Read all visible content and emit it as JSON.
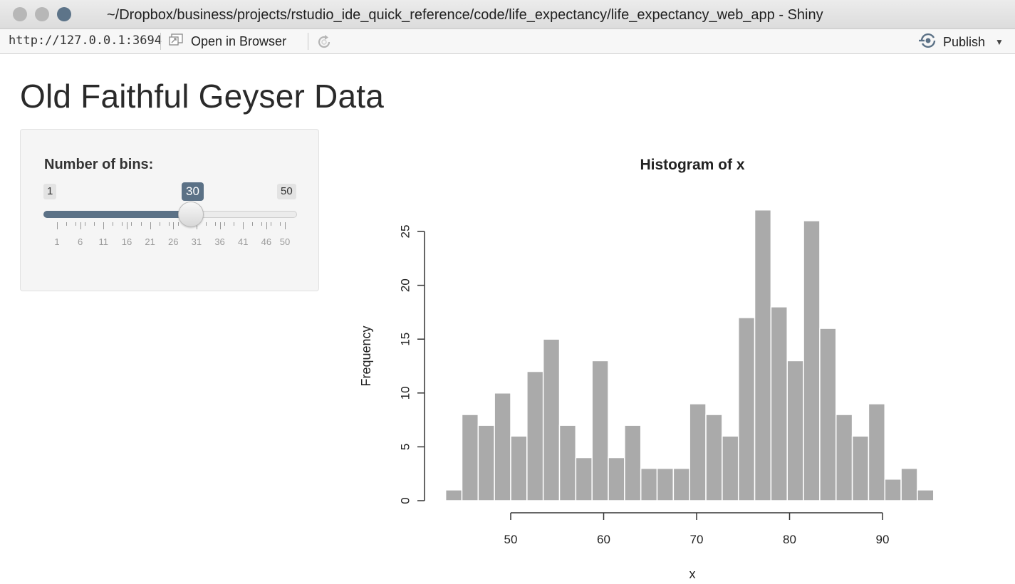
{
  "window": {
    "title": "~/Dropbox/business/projects/rstudio_ide_quick_reference/code/life_expectancy/life_expectancy_web_app - Shiny"
  },
  "toolbar": {
    "url": "http://127.0.0.1:3694",
    "open_browser_label": "Open in Browser",
    "publish_label": "Publish"
  },
  "page": {
    "title": "Old Faithful Geyser Data"
  },
  "slider": {
    "label": "Number of bins:",
    "min": "1",
    "max": "50",
    "value": "30",
    "tick_labels": [
      "1",
      "6",
      "11",
      "16",
      "21",
      "26",
      "31",
      "36",
      "41",
      "46",
      "50"
    ]
  },
  "colors": {
    "accent": "#5b7186",
    "bar_fill": "#aaaaaa",
    "bar_stroke": "#ffffff"
  },
  "chart_data": {
    "type": "bar",
    "title": "Histogram of x",
    "xlabel": "x",
    "ylabel": "Frequency",
    "bin_width": 1.75,
    "bin_start": 43,
    "values": [
      1,
      8,
      7,
      10,
      6,
      12,
      15,
      7,
      4,
      13,
      4,
      7,
      3,
      3,
      3,
      9,
      8,
      6,
      17,
      27,
      18,
      13,
      26,
      16,
      8,
      6,
      9,
      2,
      3,
      1
    ],
    "xlim": [
      43,
      96
    ],
    "ylim": [
      0,
      27
    ],
    "x_ticks": [
      "50",
      "60",
      "70",
      "80",
      "90"
    ],
    "y_ticks": [
      "0",
      "5",
      "10",
      "15",
      "20",
      "25"
    ]
  }
}
